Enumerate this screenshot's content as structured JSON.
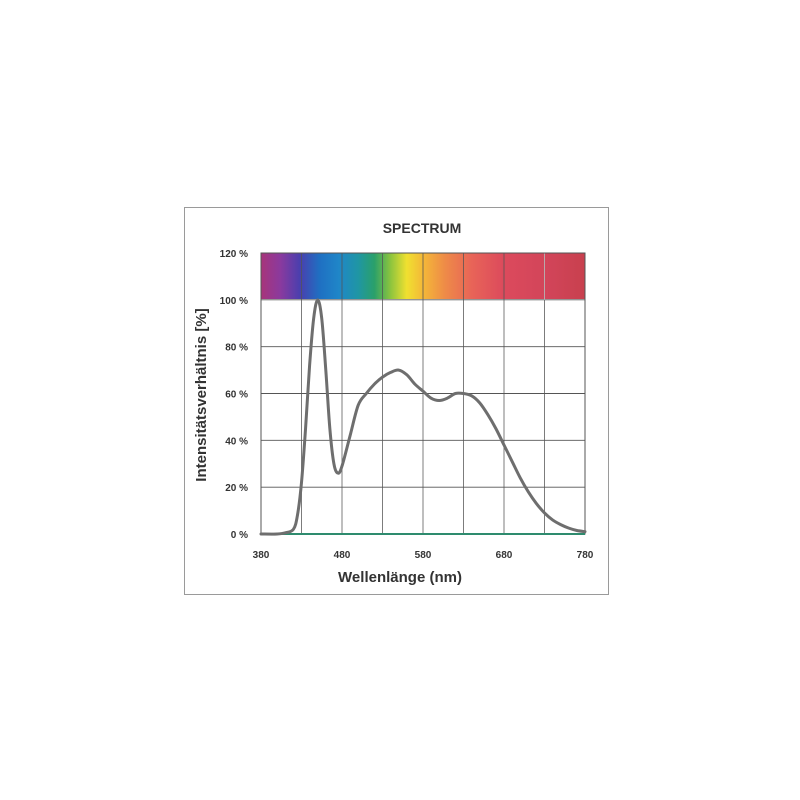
{
  "chart_data": {
    "type": "line",
    "title": "SPECTRUM",
    "xlabel": "Wellenlänge (nm)",
    "ylabel": "Intensitätsverhältnis [%]",
    "xlim": [
      380,
      780
    ],
    "ylim": [
      0,
      120
    ],
    "x_ticks": [
      "380",
      "480",
      "580",
      "680",
      "780"
    ],
    "y_ticks": [
      "0 %",
      "20 %",
      "40 %",
      "60 %",
      "80 %",
      "100 %",
      "120 %"
    ],
    "grid": true,
    "spectrum_band": [
      100,
      120
    ],
    "series": [
      {
        "color": "#6e6e6e",
        "x": [
          380,
          400,
          410,
          420,
          425,
          430,
          435,
          440,
          445,
          450,
          455,
          460,
          465,
          470,
          475,
          480,
          490,
          500,
          510,
          520,
          530,
          540,
          550,
          560,
          570,
          580,
          590,
          600,
          610,
          620,
          630,
          640,
          650,
          660,
          670,
          680,
          690,
          700,
          710,
          720,
          730,
          740,
          750,
          760,
          770,
          780
        ],
        "y": [
          0,
          0,
          0.5,
          2,
          8,
          22,
          45,
          72,
          92,
          100,
          92,
          70,
          45,
          30,
          26,
          29,
          42,
          55,
          60,
          64,
          67,
          69,
          70,
          68,
          64,
          61,
          58,
          57,
          58,
          60,
          60,
          59,
          56,
          51,
          45,
          38,
          31,
          24,
          18,
          13,
          9,
          6,
          4,
          2.5,
          1.5,
          1
        ]
      }
    ],
    "baseline_color": "#2e8b6e"
  }
}
